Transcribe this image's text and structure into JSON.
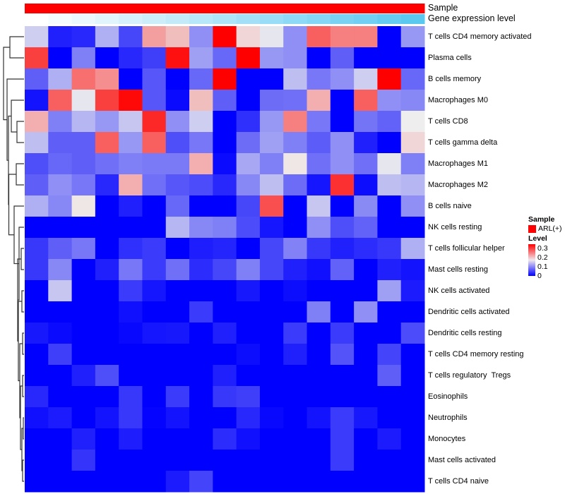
{
  "annotations": {
    "sample_label": "Sample",
    "gene_label": "Gene expression level",
    "sample_color": "#FF0000",
    "gene_color_low": "#FFFFFF",
    "gene_color_high": "#5BC8F0"
  },
  "legend": {
    "sample_title": "Sample",
    "sample_item": "ARL(+)",
    "level_title": "Level",
    "level_ticks": [
      "0.3",
      "0.2",
      "0.1",
      "0"
    ]
  },
  "chart_data": {
    "type": "heatmap",
    "title": "",
    "color_scale": {
      "min": 0,
      "mid": 0.15,
      "max": 0.3,
      "low": "#0000FF",
      "midcolor": "#EEEEEE",
      "high": "#FF0000"
    },
    "n_columns": 17,
    "rows": [
      {
        "label": "T cells CD4 memory activated",
        "values": [
          0.13,
          0.02,
          0.025,
          0.11,
          0.045,
          0.2,
          0.18,
          0.09,
          0.3,
          0.165,
          0.145,
          0.09,
          0.24,
          0.22,
          0.22,
          0,
          0.095
        ]
      },
      {
        "label": "Plasma cells",
        "values": [
          0.26,
          0,
          0.08,
          0,
          0.025,
          0.04,
          0.29,
          0.1,
          0.065,
          0.3,
          0.095,
          0.09,
          0,
          0.06,
          0,
          0,
          0
        ]
      },
      {
        "label": "B cells memory",
        "values": [
          0.06,
          0.11,
          0.23,
          0.21,
          0,
          0.055,
          0,
          0.065,
          0.3,
          0,
          0,
          0.12,
          0.075,
          0.09,
          0.13,
          0.3,
          0.065
        ]
      },
      {
        "label": "Macrophages M0",
        "values": [
          0.012,
          0.24,
          0.145,
          0.26,
          0.295,
          0.055,
          0.006,
          0.18,
          0.06,
          0,
          0.068,
          0.07,
          0.19,
          0,
          0.24,
          0.09,
          0.085
        ]
      },
      {
        "label": "T cells CD8",
        "values": [
          0.19,
          0.08,
          0.115,
          0.095,
          0.125,
          0.275,
          0.09,
          0.13,
          0,
          0.03,
          0.095,
          0.22,
          0.075,
          0,
          0.073,
          0.062,
          0.15
        ]
      },
      {
        "label": "T cells gamma delta",
        "values": [
          0.12,
          0.06,
          0.06,
          0.24,
          0.095,
          0.24,
          0.05,
          0.075,
          0,
          0.068,
          0.1,
          0.08,
          0.058,
          0.09,
          0.02,
          0,
          0.165
        ]
      },
      {
        "label": "Macrophages M1",
        "values": [
          0.05,
          0.065,
          0.06,
          0.07,
          0.08,
          0.077,
          0.077,
          0.19,
          0.006,
          0.105,
          0.08,
          0.155,
          0.07,
          0.09,
          0.07,
          0.145,
          0.08
        ]
      },
      {
        "label": "Macrophages M2",
        "values": [
          0.06,
          0.09,
          0.075,
          0.025,
          0.19,
          0.07,
          0.055,
          0.048,
          0.025,
          0.085,
          0.12,
          0.068,
          0.013,
          0.27,
          0.008,
          0.12,
          0.115
        ]
      },
      {
        "label": "B cells naive",
        "values": [
          0.11,
          0.085,
          0.155,
          0,
          0.02,
          0,
          0.065,
          0,
          0,
          0.045,
          0.25,
          0,
          0.125,
          0,
          0.087,
          0,
          0.09
        ]
      },
      {
        "label": "NK cells resting",
        "values": [
          0,
          0,
          0,
          0,
          0,
          0,
          0.115,
          0.085,
          0.08,
          0.048,
          0.013,
          0,
          0.09,
          0.05,
          0.062,
          0,
          0
        ]
      },
      {
        "label": "T cells follicular helper",
        "values": [
          0.035,
          0.06,
          0.075,
          0,
          0.03,
          0.037,
          0,
          0.018,
          0.023,
          0,
          0.045,
          0.082,
          0.035,
          0.02,
          0.028,
          0.035,
          0.11
        ]
      },
      {
        "label": "Mast cells resting",
        "values": [
          0.035,
          0.085,
          0,
          0.02,
          0.075,
          0.037,
          0.07,
          0.028,
          0.045,
          0.08,
          0.045,
          0.02,
          0.01,
          0.062,
          0,
          0.02,
          0.012
        ]
      },
      {
        "label": "NK cells activated",
        "values": [
          0,
          0.125,
          0,
          0,
          0.037,
          0.013,
          0,
          0,
          0,
          0.015,
          0,
          0.008,
          0,
          0,
          0,
          0.1,
          0.017
        ]
      },
      {
        "label": "Dendritic cells activated",
        "values": [
          0,
          0,
          0,
          0,
          0.01,
          0,
          0,
          0.037,
          0,
          0,
          0,
          0,
          0.08,
          0,
          0.09,
          0,
          0
        ]
      },
      {
        "label": "Dendritic cells resting",
        "values": [
          0.015,
          0.006,
          0,
          0,
          0.005,
          0.013,
          0.015,
          0,
          0.02,
          0,
          0,
          0.037,
          0,
          0.037,
          0,
          0,
          0.048
        ]
      },
      {
        "label": "T cells CD4 memory resting",
        "values": [
          0,
          0.04,
          0,
          0,
          0,
          0,
          0,
          0,
          0,
          0.008,
          0,
          0.02,
          0,
          0.052,
          0,
          0.043,
          0
        ]
      },
      {
        "label": "T cells regulatory  Tregs",
        "values": [
          0,
          0,
          0.02,
          0.05,
          0,
          0,
          0,
          0,
          0.02,
          0,
          0,
          0,
          0,
          0,
          0,
          0.06,
          0
        ]
      },
      {
        "label": "Eosinophils",
        "values": [
          0.025,
          0,
          0,
          0,
          0.035,
          0,
          0.037,
          0,
          0.035,
          0.04,
          0,
          0,
          0,
          0,
          0,
          0,
          0
        ]
      },
      {
        "label": "Neutrophils",
        "values": [
          0.01,
          0.017,
          0,
          0.012,
          0.035,
          0.002,
          0.012,
          0,
          0,
          0.025,
          0.005,
          0,
          0.012,
          0.037,
          0.015,
          0,
          0
        ]
      },
      {
        "label": "Monocytes",
        "values": [
          0,
          0,
          0.02,
          0,
          0.018,
          0,
          0,
          0,
          0.028,
          0.01,
          0,
          0,
          0,
          0.037,
          0,
          0.017,
          0
        ]
      },
      {
        "label": "Mast cells activated",
        "values": [
          0,
          0,
          0.033,
          0,
          0,
          0,
          0,
          0,
          0,
          0,
          0,
          0,
          0,
          0.037,
          0,
          0,
          0
        ]
      },
      {
        "label": "T cells CD4 naive",
        "values": [
          0,
          0,
          0,
          0,
          0,
          0,
          0.017,
          0.043,
          0,
          0,
          0,
          0,
          0,
          0,
          0,
          0,
          0
        ]
      }
    ]
  }
}
